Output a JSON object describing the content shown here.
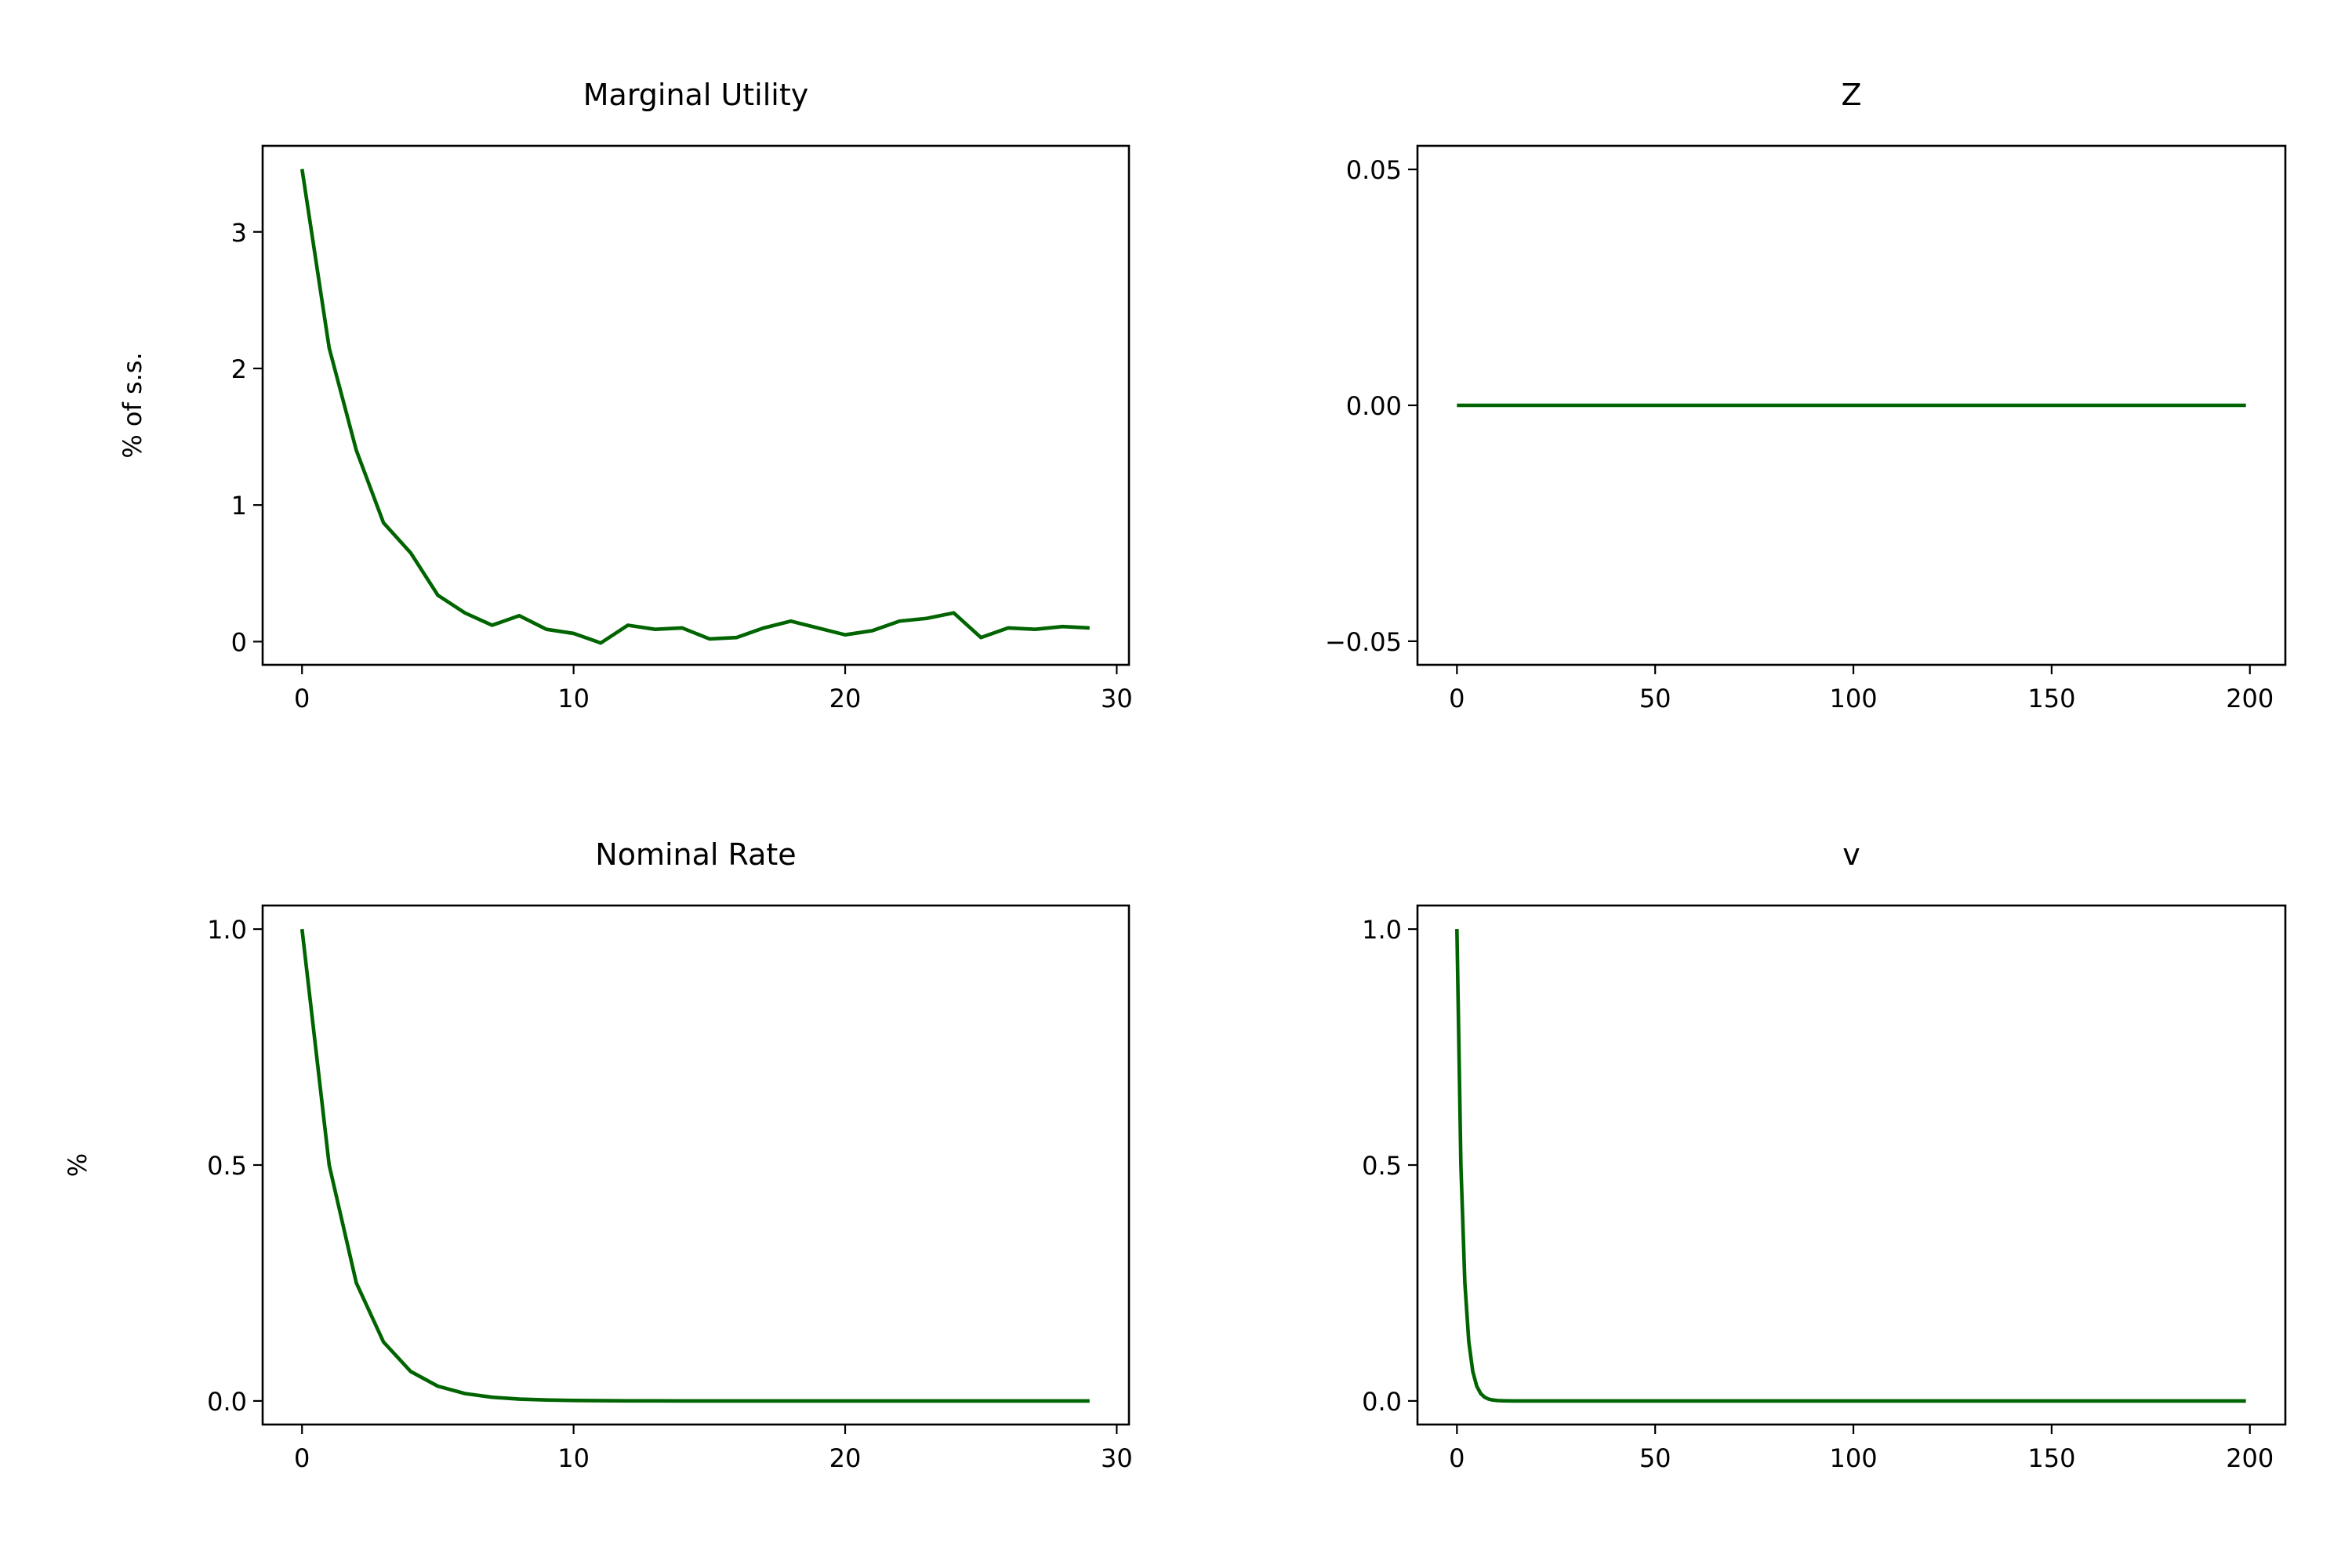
{
  "figure": {
    "line_color": "#006400",
    "grid": false
  },
  "chart_data": [
    {
      "type": "line",
      "title": "Marginal Utility",
      "ylabel": "% of s.s.",
      "xlabel": "",
      "xlim": [
        -1.45,
        30.45
      ],
      "ylim": [
        -0.17,
        3.63
      ],
      "xticks": [
        0,
        10,
        20,
        30
      ],
      "xtick_labels": [
        "0",
        "10",
        "20",
        "30"
      ],
      "yticks": [
        0,
        1,
        2,
        3
      ],
      "ytick_labels": [
        "0",
        "1",
        "2",
        "3"
      ],
      "series": [
        {
          "x": [
            0,
            1,
            2,
            3,
            4,
            5,
            6,
            7,
            8,
            9,
            10,
            11,
            12,
            13,
            14,
            15,
            16,
            17,
            18,
            19,
            20,
            21,
            22,
            23,
            24,
            25,
            26,
            27,
            28,
            29
          ],
          "values": [
            3.46,
            2.15,
            1.4,
            0.87,
            0.65,
            0.34,
            0.21,
            0.12,
            0.19,
            0.09,
            0.06,
            -0.01,
            0.12,
            0.09,
            0.1,
            0.02,
            0.03,
            0.1,
            0.15,
            0.1,
            0.05,
            0.08,
            0.15,
            0.17,
            0.21,
            0.03,
            0.1,
            0.09,
            0.11,
            0.1
          ]
        }
      ]
    },
    {
      "type": "line",
      "title": "Z",
      "ylabel": "",
      "xlabel": "",
      "xlim": [
        -9.95,
        208.95
      ],
      "ylim": [
        -0.055,
        0.055
      ],
      "xticks": [
        0,
        50,
        100,
        150,
        200
      ],
      "xtick_labels": [
        "0",
        "50",
        "100",
        "150",
        "200"
      ],
      "yticks": [
        0.05,
        0.0,
        -0.05
      ],
      "ytick_labels": [
        "0.05",
        "0.00",
        "−0.05"
      ],
      "series": [
        {
          "x": [
            0,
            199
          ],
          "values": [
            0,
            0
          ]
        }
      ]
    },
    {
      "type": "line",
      "title": "Nominal Rate",
      "ylabel": "%",
      "xlabel": "",
      "xlim": [
        -1.45,
        30.45
      ],
      "ylim": [
        -0.05,
        1.05
      ],
      "xticks": [
        0,
        10,
        20,
        30
      ],
      "xtick_labels": [
        "0",
        "10",
        "20",
        "30"
      ],
      "yticks": [
        0.0,
        0.5,
        1.0
      ],
      "ytick_labels": [
        "0.0",
        "0.5",
        "1.0"
      ],
      "series": [
        {
          "x": [
            0,
            1,
            2,
            3,
            4,
            5,
            6,
            7,
            8,
            9,
            10,
            11,
            12,
            13,
            14,
            15,
            16,
            17,
            18,
            19,
            20,
            21,
            22,
            23,
            24,
            25,
            26,
            27,
            28,
            29
          ],
          "values": [
            1.0,
            0.5,
            0.25,
            0.125,
            0.0625,
            0.0313,
            0.0156,
            0.0078,
            0.0039,
            0.002,
            0.001,
            0.0005,
            0.0002,
            0.0001,
            0,
            0,
            0,
            0,
            0,
            0,
            0,
            0,
            0,
            0,
            0,
            0,
            0,
            0,
            0,
            0
          ]
        }
      ]
    },
    {
      "type": "line",
      "title": "v",
      "ylabel": "",
      "xlabel": "",
      "xlim": [
        -9.95,
        208.95
      ],
      "ylim": [
        -0.05,
        1.05
      ],
      "xticks": [
        0,
        50,
        100,
        150,
        200
      ],
      "xtick_labels": [
        "0",
        "50",
        "100",
        "150",
        "200"
      ],
      "yticks": [
        0.0,
        0.5,
        1.0
      ],
      "ytick_labels": [
        "0.0",
        "0.5",
        "1.0"
      ],
      "series": [
        {
          "x": [
            0,
            1,
            2,
            3,
            4,
            5,
            6,
            7,
            8,
            9,
            10,
            11,
            12,
            13,
            14,
            15,
            20,
            30,
            50,
            100,
            150,
            199
          ],
          "values": [
            1.0,
            0.5,
            0.25,
            0.125,
            0.0625,
            0.0313,
            0.0156,
            0.0078,
            0.0039,
            0.002,
            0.001,
            0.0005,
            0.0002,
            0.0001,
            0,
            0,
            0,
            0,
            0,
            0,
            0,
            0
          ]
        }
      ]
    }
  ]
}
